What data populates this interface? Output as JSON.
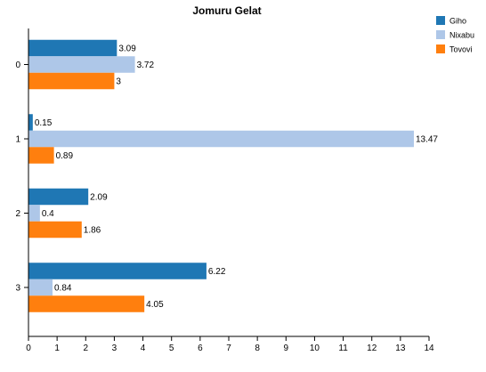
{
  "chart_data": {
    "type": "bar",
    "orientation": "horizontal",
    "title": "Jomuru Gelat",
    "categories": [
      "0",
      "1",
      "2",
      "3"
    ],
    "series": [
      {
        "name": "Giho",
        "color": "#1f77b4",
        "values": [
          3.09,
          0.15,
          2.09,
          6.22
        ],
        "labels": [
          "3.09",
          "0.15",
          "2.09",
          "6.22"
        ]
      },
      {
        "name": "Nixabu",
        "color": "#aec7e8",
        "values": [
          3.72,
          13.47,
          0.4,
          0.84
        ],
        "labels": [
          "3.72",
          "13.47",
          "0.4",
          "0.84"
        ]
      },
      {
        "name": "Tovovi",
        "color": "#ff7f0e",
        "values": [
          3,
          0.89,
          1.86,
          4.05
        ],
        "labels": [
          "3",
          "0.89",
          "1.86",
          "4.05"
        ]
      }
    ],
    "xlim": [
      0,
      14
    ],
    "xticks": [
      "0",
      "1",
      "2",
      "3",
      "4",
      "5",
      "6",
      "7",
      "8",
      "9",
      "10",
      "11",
      "12",
      "13",
      "14"
    ],
    "grid": false,
    "legend_position": "top-right"
  }
}
